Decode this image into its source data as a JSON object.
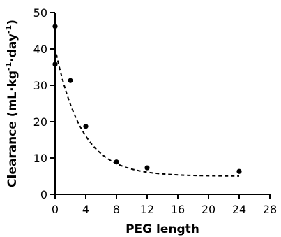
{
  "chart_data": {
    "type": "scatter",
    "xlabel": "PEG length",
    "ylabel_prefix": "Clearance (mL·kg",
    "ylabel_exp1": "-1",
    "ylabel_mid": "·day",
    "ylabel_exp2": "-1",
    "ylabel_suffix": ")",
    "xlim": [
      0,
      28
    ],
    "ylim": [
      0,
      50
    ],
    "xticks": [
      0,
      4,
      8,
      12,
      16,
      20,
      24,
      28
    ],
    "yticks": [
      0,
      10,
      20,
      30,
      40,
      50
    ],
    "grid": false,
    "series": [
      {
        "points": [
          {
            "x": 0,
            "y": 46.2
          },
          {
            "x": 0,
            "y": 35.8
          },
          {
            "x": 2,
            "y": 31.3
          },
          {
            "x": 4,
            "y": 18.7
          },
          {
            "x": 8,
            "y": 8.9
          },
          {
            "x": 12,
            "y": 7.3
          },
          {
            "x": 24,
            "y": 6.3
          }
        ]
      }
    ],
    "fit": {
      "style": "dashed",
      "model": "exponential decay",
      "y0": 40.2,
      "plateau": 5.0,
      "k": 0.29,
      "x_start": 0,
      "x_end": 24
    }
  }
}
